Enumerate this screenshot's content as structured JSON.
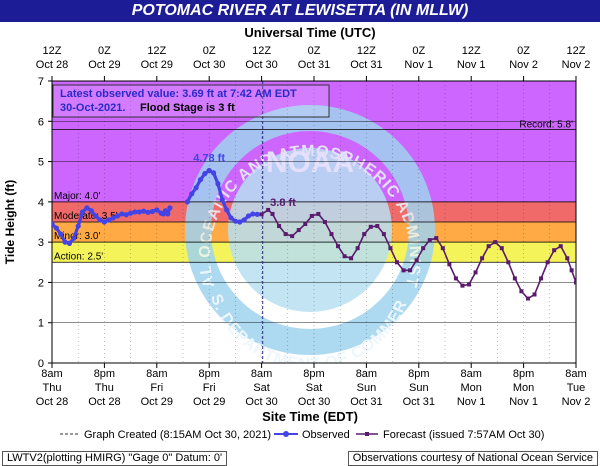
{
  "title": "POTOMAC RIVER AT LEWISETTA (IN MLLW)",
  "colors": {
    "title_bg": "#1c1c96",
    "major": "#cc66ff",
    "moderate": "#f06a6a",
    "minor": "#ffaa44",
    "action": "#f4f45a",
    "observed": "#4343e6",
    "forecast": "#5a1a6e",
    "noaa_logo": "#9fd3ef"
  },
  "chart_data": {
    "type": "line",
    "xlabel_top": "Universal Time (UTC)",
    "xlabel_bottom": "Site Time (EDT)",
    "ylabel": "Tide Height (ft)",
    "ylim": [
      0,
      7
    ],
    "y_ticks": [
      "0",
      "1",
      "2",
      "3",
      "4",
      "5",
      "6",
      "7"
    ],
    "x_ticks_top": [
      {
        "l1": "12Z",
        "l2": "Oct 28"
      },
      {
        "l1": "0Z",
        "l2": "Oct 29"
      },
      {
        "l1": "12Z",
        "l2": "Oct 29"
      },
      {
        "l1": "0Z",
        "l2": "Oct 30"
      },
      {
        "l1": "12Z",
        "l2": "Oct 30"
      },
      {
        "l1": "0Z",
        "l2": "Oct 31"
      },
      {
        "l1": "12Z",
        "l2": "Oct 31"
      },
      {
        "l1": "0Z",
        "l2": "Nov 1"
      },
      {
        "l1": "12Z",
        "l2": "Nov 1"
      },
      {
        "l1": "0Z",
        "l2": "Nov 2"
      },
      {
        "l1": "12Z",
        "l2": "Nov 2"
      }
    ],
    "x_ticks_bottom": [
      {
        "l1": "8am",
        "l2": "Thu",
        "l3": "Oct 28"
      },
      {
        "l1": "8pm",
        "l2": "Thu",
        "l3": "Oct 28"
      },
      {
        "l1": "8am",
        "l2": "Fri",
        "l3": "Oct 29"
      },
      {
        "l1": "8pm",
        "l2": "Fri",
        "l3": "Oct 29"
      },
      {
        "l1": "8am",
        "l2": "Sat",
        "l3": "Oct 30"
      },
      {
        "l1": "8pm",
        "l2": "Sat",
        "l3": "Oct 30"
      },
      {
        "l1": "8am",
        "l2": "Sun",
        "l3": "Oct 31"
      },
      {
        "l1": "8pm",
        "l2": "Sun",
        "l3": "Oct 31"
      },
      {
        "l1": "8am",
        "l2": "Mon",
        "l3": "Nov 1"
      },
      {
        "l1": "8pm",
        "l2": "Mon",
        "l3": "Nov 1"
      },
      {
        "l1": "8am",
        "l2": "Tue",
        "l3": "Nov 2"
      }
    ],
    "x_unit": "hours after 8am EDT Thu Oct 28",
    "x_range_hours": [
      0,
      120
    ],
    "stages": [
      {
        "label": "Major: 4.0'",
        "value": 4.0
      },
      {
        "label": "Moderate: 3.5'",
        "value": 3.5
      },
      {
        "label": "Minor: 3.0'",
        "value": 3.0
      },
      {
        "label": "Action: 2.5'",
        "value": 2.5
      }
    ],
    "record": {
      "label": "Record: 5.8'",
      "value": 5.8
    },
    "graph_created_hour": 48.25,
    "annotations": {
      "observed_peak": {
        "label": "4.78 ft",
        "x": 36.0,
        "y": 4.78
      },
      "forecast_peak": {
        "label": "3.8 ft",
        "x": 49.5,
        "y": 3.8
      }
    },
    "info_box": {
      "line1": "Latest observed value: 3.69 ft at 7:42 AM EDT",
      "line2a": "30-Oct-2021.",
      "line2b": "Flood Stage is 3 ft"
    },
    "series": [
      {
        "name": "Observed",
        "points": [
          [
            0,
            3.45
          ],
          [
            1,
            3.35
          ],
          [
            2,
            3.2
          ],
          [
            3,
            3.0
          ],
          [
            4,
            2.97
          ],
          [
            5,
            3.1
          ],
          [
            6,
            3.4
          ],
          [
            7,
            3.75
          ],
          [
            8,
            3.85
          ],
          [
            9,
            3.78
          ],
          [
            10,
            3.65
          ],
          [
            11,
            3.55
          ],
          [
            12,
            3.5
          ],
          [
            13,
            3.55
          ],
          [
            14,
            3.6
          ],
          [
            15,
            3.65
          ],
          [
            16,
            3.7
          ],
          [
            17,
            3.68
          ],
          [
            18,
            3.72
          ],
          [
            19,
            3.75
          ],
          [
            20,
            3.75
          ],
          [
            21,
            3.77
          ],
          [
            22,
            3.74
          ],
          [
            23,
            3.76
          ],
          [
            24,
            3.8
          ],
          [
            25,
            3.72
          ],
          [
            25.5,
            3.7
          ],
          [
            26,
            3.78
          ],
          [
            26.5,
            3.7
          ],
          [
            27,
            3.85
          ],
          [
            31,
            4.0
          ],
          [
            32,
            4.2
          ],
          [
            33,
            4.35
          ],
          [
            34,
            4.55
          ],
          [
            35,
            4.7
          ],
          [
            36,
            4.78
          ],
          [
            37,
            4.72
          ],
          [
            38,
            4.45
          ],
          [
            39,
            4.05
          ],
          [
            40,
            3.8
          ],
          [
            41,
            3.6
          ],
          [
            42,
            3.52
          ],
          [
            43,
            3.5
          ],
          [
            44,
            3.55
          ],
          [
            45,
            3.65
          ],
          [
            46,
            3.7
          ],
          [
            47,
            3.69
          ]
        ]
      },
      {
        "name": "Forecast",
        "points": [
          [
            48,
            3.69
          ],
          [
            49.5,
            3.8
          ],
          [
            50.5,
            3.7
          ],
          [
            52,
            3.4
          ],
          [
            53.5,
            3.2
          ],
          [
            55,
            3.15
          ],
          [
            56.5,
            3.3
          ],
          [
            58,
            3.45
          ],
          [
            59.5,
            3.65
          ],
          [
            61,
            3.7
          ],
          [
            62.5,
            3.5
          ],
          [
            64,
            3.2
          ],
          [
            65.5,
            2.9
          ],
          [
            67,
            2.65
          ],
          [
            68.5,
            2.6
          ],
          [
            70,
            2.85
          ],
          [
            71.5,
            3.2
          ],
          [
            73,
            3.38
          ],
          [
            74.5,
            3.4
          ],
          [
            76,
            3.2
          ],
          [
            77.5,
            2.85
          ],
          [
            79,
            2.5
          ],
          [
            80.5,
            2.3
          ],
          [
            82,
            2.3
          ],
          [
            83.5,
            2.55
          ],
          [
            85,
            2.85
          ],
          [
            86.5,
            3.05
          ],
          [
            88,
            3.1
          ],
          [
            89.5,
            2.85
          ],
          [
            91,
            2.45
          ],
          [
            92.5,
            2.1
          ],
          [
            94,
            1.92
          ],
          [
            95.5,
            1.95
          ],
          [
            97,
            2.25
          ],
          [
            98.5,
            2.6
          ],
          [
            100,
            2.9
          ],
          [
            101.5,
            3.0
          ],
          [
            103,
            2.85
          ],
          [
            104.5,
            2.5
          ],
          [
            106,
            2.1
          ],
          [
            107.5,
            1.78
          ],
          [
            109,
            1.6
          ],
          [
            110.5,
            1.7
          ],
          [
            112,
            2.1
          ],
          [
            113.5,
            2.5
          ],
          [
            115,
            2.8
          ],
          [
            116.5,
            2.9
          ],
          [
            118,
            2.6
          ],
          [
            119,
            2.3
          ],
          [
            120,
            2.0
          ]
        ]
      }
    ]
  },
  "legend": {
    "graph_created": "Graph Created (8:15AM Oct 30, 2021)",
    "observed": "Observed",
    "forecast": "Forecast (issued 7:57AM Oct 30)"
  },
  "watermark": {
    "ring_top": "NATIONAL OCEANIC AND ATMOSPHERIC ADMINISTRATION",
    "ring_bottom": "U.S. DEPARTMENT OF COMMERCE",
    "center": "NOAA"
  },
  "footer": {
    "left": "LWTV2(plotting HMIRG) \"Gage 0\" Datum: 0'",
    "right": "Observations courtesy of National Ocean Service"
  }
}
